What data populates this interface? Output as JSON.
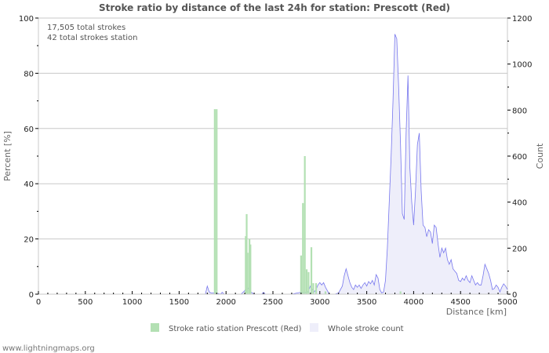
{
  "title": "Stroke ratio by distance of the last 24h for station: Prescott (Red)",
  "info": {
    "line1": "17,505 total strokes",
    "line2": "42 total strokes station"
  },
  "footer": "www.lightningmaps.org",
  "colors": {
    "ratio_bar": "#b3e0b3",
    "count_line": "#7777ee",
    "count_fill": "#eeeefa",
    "grid": "#c8c8c8"
  },
  "chart_data": {
    "type": "bar",
    "title": "Stroke ratio by distance of the last 24h for station: Prescott (Red)",
    "xlabel": "Distance   [km]",
    "ylabel": "Percent   [%]",
    "y2label": "Count",
    "xlim": [
      0,
      5000
    ],
    "ylim": [
      0,
      100
    ],
    "y2lim": [
      0,
      1200
    ],
    "x_ticks": [
      0,
      500,
      1000,
      1500,
      2000,
      2500,
      3000,
      3500,
      4000,
      4500,
      5000
    ],
    "y_ticks": [
      0,
      20,
      40,
      60,
      80,
      100
    ],
    "y2_ticks": [
      0,
      200,
      400,
      600,
      800,
      1000,
      1200
    ],
    "grid": true,
    "legend": [
      "Stroke ratio station Prescott (Red)",
      "Whole stroke count"
    ],
    "legend_position": "bottom",
    "series": [
      {
        "name": "Stroke ratio station Prescott (Red)",
        "type": "bar",
        "axis": "left",
        "x": [
          1880,
          1900,
          2210,
          2220,
          2230,
          2250,
          2260,
          2800,
          2820,
          2840,
          2860,
          2880,
          2910,
          2930,
          2960,
          3060,
          3860
        ],
        "values": [
          67,
          67,
          21,
          29,
          15,
          20,
          18,
          14,
          33,
          50,
          9,
          8,
          17,
          4,
          4,
          1,
          1
        ]
      },
      {
        "name": "Whole stroke count",
        "type": "area",
        "axis": "right",
        "x": [
          0,
          1780,
          1800,
          1820,
          1840,
          1860,
          1900,
          1940,
          1960,
          1980,
          2000,
          2160,
          2200,
          2220,
          2240,
          2260,
          2280,
          2300,
          2380,
          2400,
          2420,
          2700,
          2760,
          2800,
          2820,
          2840,
          2860,
          2880,
          2900,
          2920,
          2940,
          2960,
          2980,
          3000,
          3020,
          3040,
          3060,
          3080,
          3100,
          3160,
          3200,
          3240,
          3260,
          3280,
          3300,
          3320,
          3340,
          3360,
          3380,
          3400,
          3420,
          3440,
          3460,
          3480,
          3500,
          3520,
          3540,
          3560,
          3580,
          3600,
          3620,
          3640,
          3660,
          3680,
          3700,
          3720,
          3740,
          3760,
          3780,
          3800,
          3820,
          3840,
          3860,
          3880,
          3900,
          3920,
          3940,
          3960,
          3980,
          4000,
          4020,
          4040,
          4060,
          4080,
          4100,
          4120,
          4140,
          4160,
          4180,
          4200,
          4220,
          4240,
          4260,
          4280,
          4300,
          4320,
          4340,
          4360,
          4380,
          4400,
          4420,
          4440,
          4460,
          4480,
          4500,
          4520,
          4540,
          4560,
          4580,
          4600,
          4620,
          4640,
          4660,
          4680,
          4700,
          4720,
          4740,
          4760,
          4780,
          4800,
          4820,
          4840,
          4860,
          4880,
          4900,
          4920,
          4940,
          4960,
          4980,
          5000
        ],
        "values": [
          0,
          0,
          35,
          10,
          5,
          5,
          5,
          0,
          8,
          0,
          0,
          0,
          15,
          35,
          25,
          10,
          5,
          0,
          0,
          8,
          0,
          0,
          5,
          8,
          5,
          10,
          5,
          15,
          35,
          20,
          10,
          20,
          40,
          50,
          40,
          50,
          30,
          15,
          0,
          0,
          5,
          35,
          80,
          110,
          80,
          50,
          30,
          20,
          40,
          30,
          40,
          25,
          40,
          50,
          35,
          55,
          45,
          60,
          40,
          85,
          70,
          20,
          5,
          10,
          60,
          200,
          400,
          600,
          840,
          1130,
          1110,
          900,
          650,
          350,
          325,
          700,
          950,
          550,
          400,
          300,
          450,
          650,
          700,
          450,
          300,
          290,
          250,
          280,
          270,
          220,
          300,
          290,
          220,
          160,
          200,
          180,
          200,
          150,
          130,
          150,
          110,
          100,
          90,
          60,
          55,
          70,
          60,
          80,
          60,
          50,
          80,
          60,
          40,
          50,
          40,
          40,
          80,
          130,
          110,
          90,
          60,
          20,
          25,
          40,
          30,
          10,
          30,
          45,
          35,
          20
        ]
      }
    ]
  }
}
